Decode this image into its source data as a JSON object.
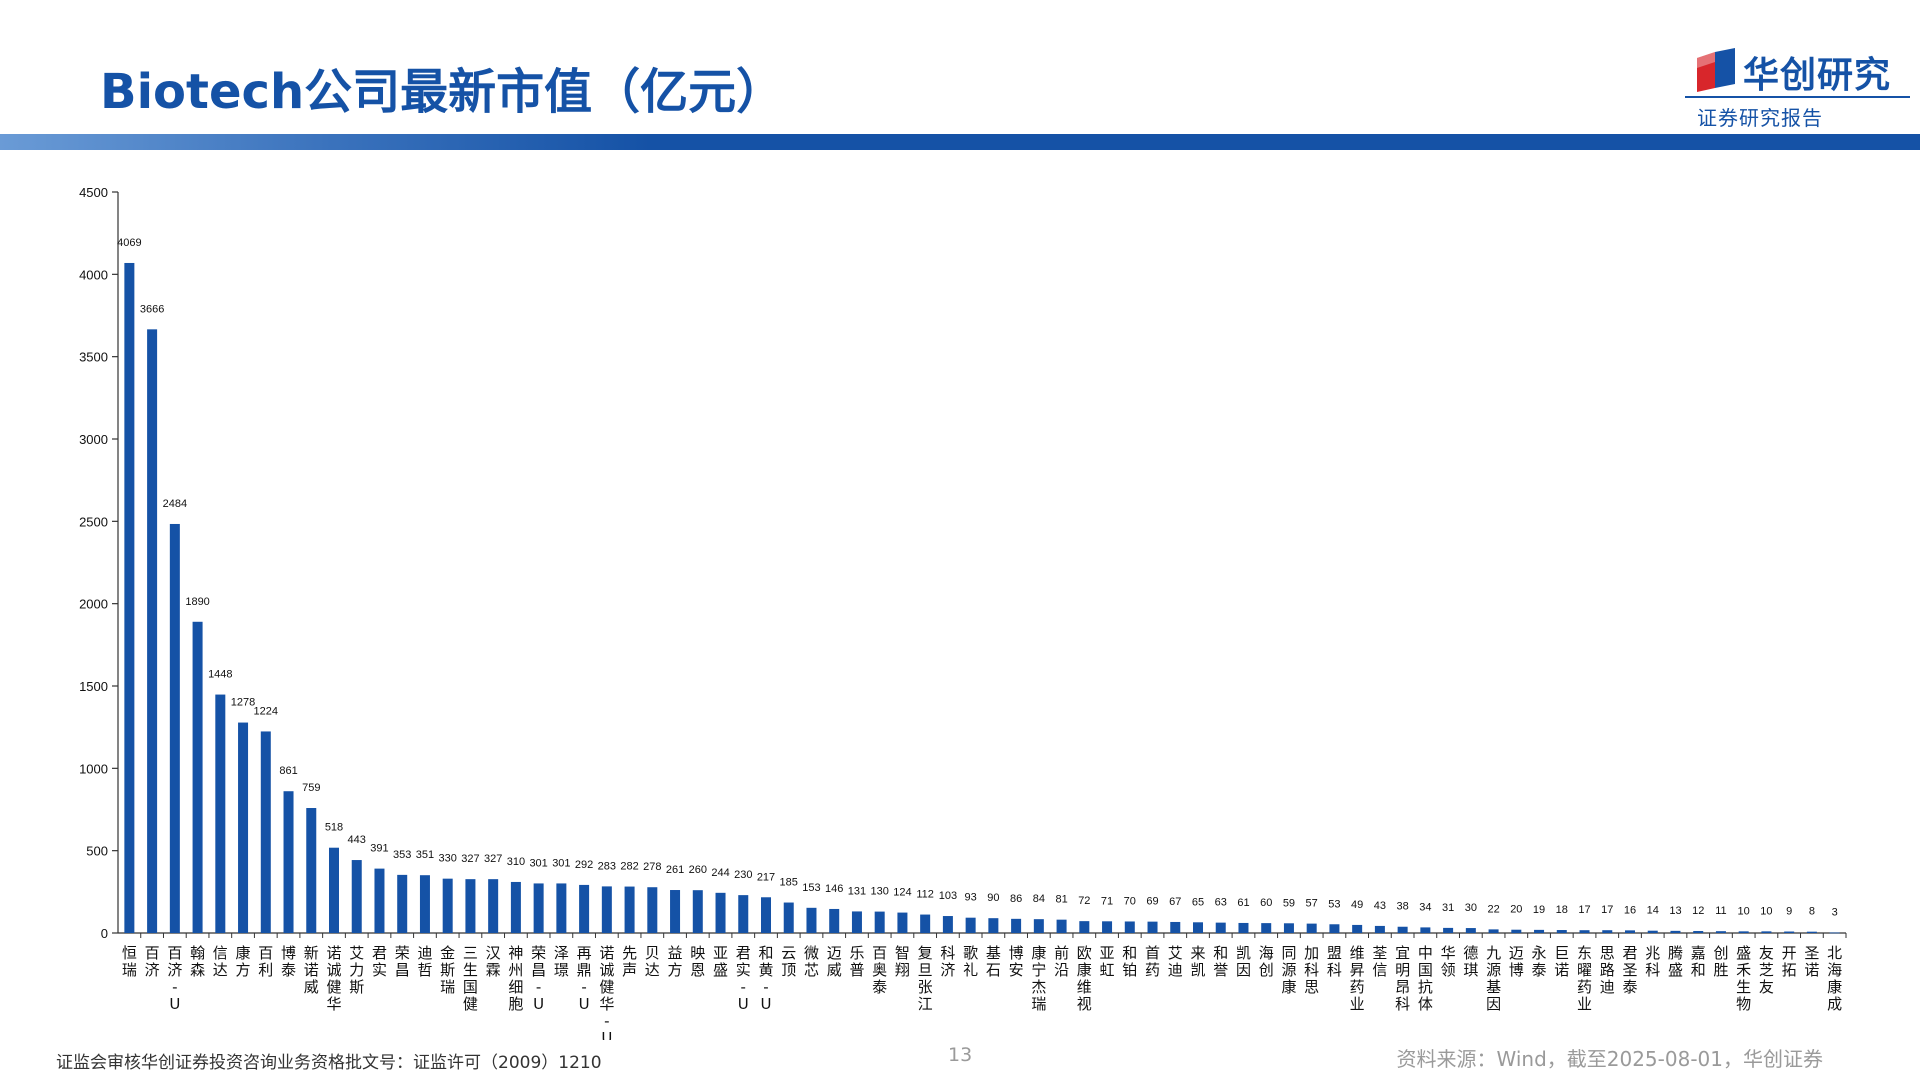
{
  "header": {
    "title": "Biotech公司最新市值（亿元）",
    "logo_name": "华创研究",
    "logo_sub": "证券研究报告"
  },
  "footer": {
    "license": "证监会审核华创证券投资咨询业务资格批文号：证监许可（2009）1210",
    "page": "13",
    "source": "资料来源：Wind，截至2025-08-01，华创证券"
  },
  "colors": {
    "brand": "#1552a6",
    "bar": "#1552a6",
    "muted": "#9a9a9a"
  },
  "chart_data": {
    "type": "bar",
    "title": "",
    "xlabel": "",
    "ylabel": "",
    "ylim": [
      0,
      4500
    ],
    "yticks": [
      0,
      500,
      1000,
      1500,
      2000,
      2500,
      3000,
      3500,
      4000,
      4500
    ],
    "categories": [
      "恒瑞",
      "百济",
      "百济-U",
      "翰森",
      "信达",
      "康方",
      "百利",
      "博泰",
      "新诺威",
      "诺诚健华",
      "艾力斯",
      "君实",
      "荣昌",
      "迪哲",
      "金斯瑞",
      "三生国健",
      "汉霖",
      "神州细胞",
      "荣昌-U",
      "泽璟",
      "再鼎-U",
      "诺诚健华-U",
      "先声",
      "贝达",
      "益方",
      "映恩",
      "亚盛",
      "君实-U",
      "和黄-U",
      "云顶",
      "微芯",
      "迈威",
      "乐普",
      "百奥泰",
      "智翔",
      "复旦张江",
      "科济",
      "歌礼",
      "基石",
      "博安",
      "康宁杰瑞",
      "前沿",
      "欧康维视",
      "亚虹",
      "和铂",
      "首药",
      "艾迪",
      "来凯",
      "和誉",
      "凯因",
      "海创",
      "同源康",
      "加科思",
      "盟科",
      "维昇药业",
      "荃信",
      "宜明昂科",
      "中国抗体",
      "华领",
      "德琪",
      "九源基因",
      "迈博",
      "永泰",
      "巨诺",
      "东曜药业",
      "思路迪",
      "君圣泰",
      "兆科",
      "腾盛",
      "嘉和",
      "创胜",
      "盛禾生物",
      "友芝友",
      "开拓",
      "圣诺",
      "北海康成"
    ],
    "values": [
      4069,
      3666,
      2484,
      1890,
      1448,
      1278,
      1224,
      861,
      759,
      518,
      443,
      391,
      353,
      351,
      330,
      327,
      327,
      310,
      301,
      301,
      292,
      283,
      282,
      278,
      261,
      260,
      244,
      230,
      217,
      185,
      153,
      146,
      131,
      130,
      124,
      112,
      103,
      93,
      90,
      86,
      84,
      81,
      72,
      71,
      70,
      69,
      67,
      65,
      63,
      61,
      60,
      59,
      57,
      53,
      49,
      43,
      38,
      34,
      31,
      30,
      22,
      20,
      19,
      18,
      17,
      17,
      16,
      14,
      13,
      12,
      11,
      10,
      10,
      9,
      8,
      3
    ]
  }
}
